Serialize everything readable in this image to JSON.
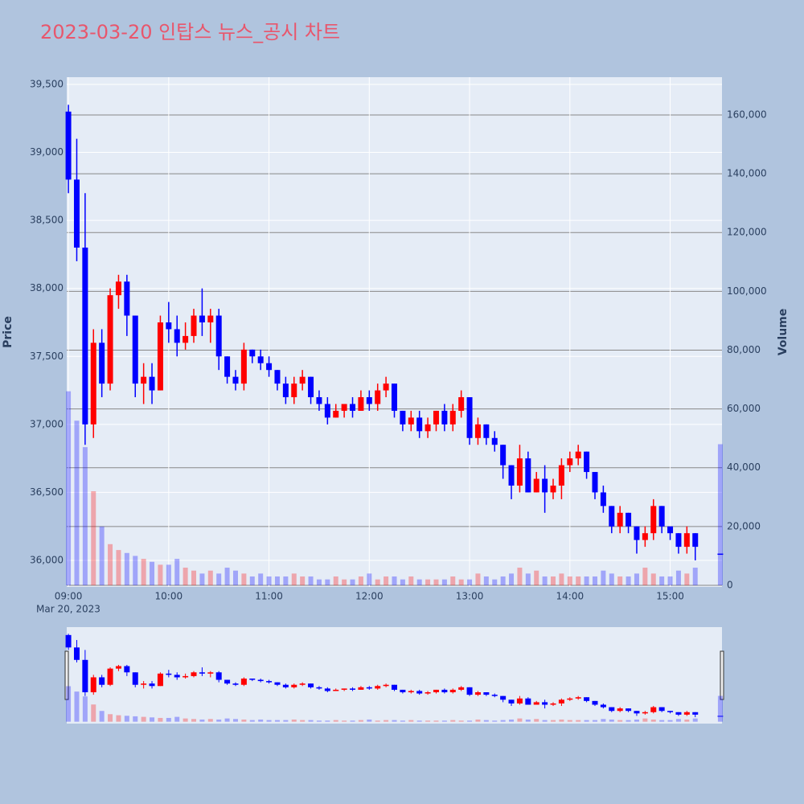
{
  "chart_data": {
    "type": "candlestick",
    "title": "2023-03-20 인탑스 뉴스_공시 차트",
    "y_label": "Price",
    "y2_label": "Volume",
    "x_date_label": "Mar 20, 2023",
    "increasing_color": "#ff0000",
    "decreasing_color": "#0000ff",
    "xlim": [
      "2023-03-20 08:59",
      "2023-03-20 15:31"
    ],
    "xticks": [
      {
        "value": "2023-03-20 09:00",
        "label": "09:00"
      },
      {
        "value": "2023-03-20 10:00",
        "label": "10:00"
      },
      {
        "value": "2023-03-20 11:00",
        "label": "11:00"
      },
      {
        "value": "2023-03-20 12:00",
        "label": "12:00"
      },
      {
        "value": "2023-03-20 13:00",
        "label": "13:00"
      },
      {
        "value": "2023-03-20 14:00",
        "label": "14:00"
      },
      {
        "value": "2023-03-20 15:00",
        "label": "15:00"
      }
    ],
    "ylim": [
      35805,
      39553
    ],
    "yticks": [
      {
        "value": 36000,
        "label": "36,000"
      },
      {
        "value": 36500,
        "label": "36,500"
      },
      {
        "value": 37000,
        "label": "37,000"
      },
      {
        "value": 37500,
        "label": "37,500"
      },
      {
        "value": 38000,
        "label": "38,000"
      },
      {
        "value": 38500,
        "label": "38,500"
      },
      {
        "value": 39000,
        "label": "39,000"
      },
      {
        "value": 39500,
        "label": "39,500"
      }
    ],
    "y2lim": [
      -550,
      172850
    ],
    "y2ticks": [
      0,
      {
        "value": 20000,
        "label": "20,000"
      },
      {
        "value": 40000,
        "label": "40,000"
      },
      {
        "value": 60000,
        "label": "60,000"
      },
      {
        "value": 80000,
        "label": "80,000"
      },
      {
        "value": 100000,
        "label": "100,000"
      },
      {
        "value": 120000,
        "label": "120,000"
      },
      {
        "value": 140000,
        "label": "140,000"
      },
      {
        "value": 160000,
        "label": "160,000"
      }
    ],
    "x": [
      "2023-03-20 09:00",
      "2023-03-20 09:05",
      "2023-03-20 09:10",
      "2023-03-20 09:15",
      "2023-03-20 09:20",
      "2023-03-20 09:25",
      "2023-03-20 09:30",
      "2023-03-20 09:35",
      "2023-03-20 09:40",
      "2023-03-20 09:45",
      "2023-03-20 09:50",
      "2023-03-20 09:55",
      "2023-03-20 10:00",
      "2023-03-20 10:05",
      "2023-03-20 10:10",
      "2023-03-20 10:15",
      "2023-03-20 10:20",
      "2023-03-20 10:25",
      "2023-03-20 10:30",
      "2023-03-20 10:35",
      "2023-03-20 10:40",
      "2023-03-20 10:45",
      "2023-03-20 10:50",
      "2023-03-20 10:55",
      "2023-03-20 11:00",
      "2023-03-20 11:05",
      "2023-03-20 11:10",
      "2023-03-20 11:15",
      "2023-03-20 11:20",
      "2023-03-20 11:25",
      "2023-03-20 11:30",
      "2023-03-20 11:35",
      "2023-03-20 11:40",
      "2023-03-20 11:45",
      "2023-03-20 11:50",
      "2023-03-20 11:55",
      "2023-03-20 12:00",
      "2023-03-20 12:05",
      "2023-03-20 12:10",
      "2023-03-20 12:15",
      "2023-03-20 12:20",
      "2023-03-20 12:25",
      "2023-03-20 12:30",
      "2023-03-20 12:35",
      "2023-03-20 12:40",
      "2023-03-20 12:45",
      "2023-03-20 12:50",
      "2023-03-20 12:55",
      "2023-03-20 13:00",
      "2023-03-20 13:05",
      "2023-03-20 13:10",
      "2023-03-20 13:15",
      "2023-03-20 13:20",
      "2023-03-20 13:25",
      "2023-03-20 13:30",
      "2023-03-20 13:35",
      "2023-03-20 13:40",
      "2023-03-20 13:45",
      "2023-03-20 13:50",
      "2023-03-20 13:55",
      "2023-03-20 14:00",
      "2023-03-20 14:05",
      "2023-03-20 14:10",
      "2023-03-20 14:15",
      "2023-03-20 14:20",
      "2023-03-20 14:25",
      "2023-03-20 14:30",
      "2023-03-20 14:35",
      "2023-03-20 14:40",
      "2023-03-20 14:45",
      "2023-03-20 14:50",
      "2023-03-20 14:55",
      "2023-03-20 15:00",
      "2023-03-20 15:05",
      "2023-03-20 15:10",
      "2023-03-20 15:15",
      "2023-03-20 15:30"
    ],
    "open": [
      39300,
      38800,
      38300,
      37000,
      37600,
      37300,
      37950,
      38050,
      37800,
      37300,
      37350,
      37250,
      37750,
      37700,
      37600,
      37650,
      37800,
      37750,
      37800,
      37500,
      37350,
      37300,
      37550,
      37500,
      37450,
      37400,
      37300,
      37200,
      37300,
      37350,
      37200,
      37150,
      37050,
      37100,
      37150,
      37100,
      37200,
      37150,
      37250,
      37300,
      37100,
      37000,
      37050,
      36950,
      37000,
      37100,
      37000,
      37100,
      37200,
      36900,
      37000,
      36900,
      36850,
      36700,
      36550,
      36750,
      36500,
      36600,
      36500,
      36550,
      36700,
      36750,
      36800,
      36650,
      36500,
      36400,
      36250,
      36350,
      36250,
      36150,
      36200,
      36400,
      36250,
      36200,
      36100,
      36200,
      36050
    ],
    "high": [
      39350,
      39100,
      38700,
      37700,
      37700,
      38000,
      38100,
      38100,
      37800,
      37450,
      37450,
      37800,
      37900,
      37800,
      37750,
      37850,
      38000,
      37850,
      37850,
      37500,
      37400,
      37600,
      37550,
      37550,
      37500,
      37400,
      37350,
      37350,
      37400,
      37350,
      37250,
      37200,
      37150,
      37150,
      37200,
      37250,
      37250,
      37300,
      37350,
      37300,
      37100,
      37100,
      37100,
      37050,
      37100,
      37150,
      37150,
      37250,
      37200,
      37050,
      37000,
      36950,
      36850,
      36700,
      36850,
      36800,
      36650,
      36700,
      36600,
      36750,
      36800,
      36850,
      36800,
      36650,
      36550,
      36400,
      36400,
      36350,
      36250,
      36250,
      36450,
      36400,
      36250,
      36200,
      36250,
      36200,
      36050
    ],
    "low": [
      38700,
      38200,
      36850,
      36900,
      37200,
      37250,
      37850,
      37650,
      37200,
      37150,
      37150,
      37250,
      37600,
      37500,
      37550,
      37600,
      37650,
      37600,
      37400,
      37300,
      37250,
      37250,
      37450,
      37400,
      37350,
      37250,
      37150,
      37150,
      37250,
      37150,
      37100,
      37000,
      37050,
      37050,
      37050,
      37100,
      37100,
      37100,
      37200,
      37050,
      36950,
      36950,
      36900,
      36900,
      36950,
      36950,
      36950,
      37050,
      36850,
      36850,
      36850,
      36800,
      36600,
      36450,
      36500,
      36500,
      36500,
      36350,
      36450,
      36450,
      36650,
      36700,
      36600,
      36450,
      36350,
      36200,
      36200,
      36200,
      36050,
      36100,
      36150,
      36200,
      36150,
      36050,
      36050,
      36000,
      36050
    ],
    "close": [
      38800,
      38300,
      37000,
      37600,
      37300,
      37950,
      38050,
      37800,
      37300,
      37350,
      37250,
      37750,
      37700,
      37600,
      37650,
      37800,
      37750,
      37800,
      37500,
      37350,
      37300,
      37550,
      37500,
      37450,
      37400,
      37300,
      37200,
      37300,
      37350,
      37200,
      37150,
      37050,
      37100,
      37150,
      37100,
      37200,
      37150,
      37250,
      37300,
      37100,
      37000,
      37050,
      36950,
      37000,
      37100,
      37000,
      37100,
      37200,
      36900,
      37000,
      36900,
      36850,
      36700,
      36550,
      36750,
      36500,
      36600,
      36500,
      36550,
      36700,
      36750,
      36800,
      36650,
      36500,
      36400,
      36250,
      36350,
      36250,
      36150,
      36200,
      36400,
      36250,
      36200,
      36100,
      36200,
      36100,
      36050
    ],
    "volume": [
      66000,
      56000,
      47000,
      32000,
      20000,
      14000,
      12000,
      11000,
      10000,
      9000,
      8000,
      7000,
      7000,
      9000,
      6000,
      5000,
      4000,
      5000,
      4000,
      6000,
      5000,
      4000,
      3000,
      4000,
      3000,
      3000,
      3000,
      4000,
      3000,
      3000,
      2000,
      2000,
      3000,
      2000,
      2000,
      3000,
      4000,
      2000,
      3000,
      3000,
      2000,
      3000,
      2000,
      2000,
      2000,
      2000,
      3000,
      2000,
      2000,
      4000,
      3000,
      2000,
      3000,
      4000,
      6000,
      4000,
      5000,
      3000,
      3000,
      4000,
      3000,
      3000,
      3000,
      3000,
      5000,
      4000,
      3000,
      3000,
      4000,
      6000,
      4000,
      3000,
      3000,
      5000,
      4000,
      6000,
      48000
    ]
  }
}
